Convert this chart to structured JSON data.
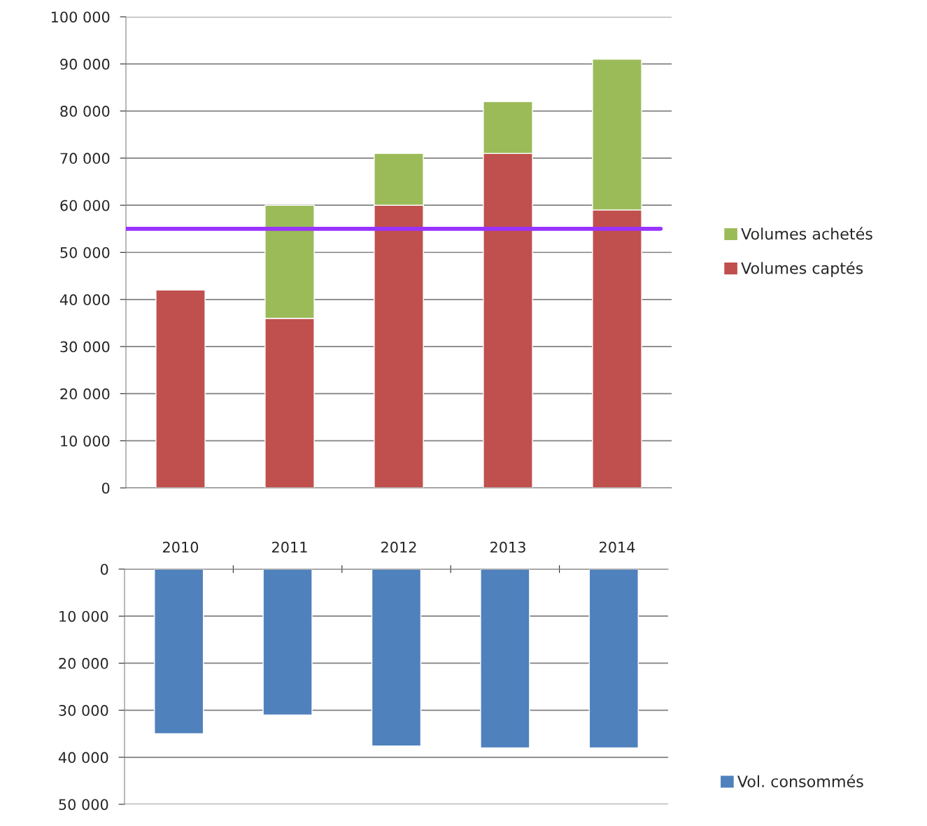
{
  "chart_data": [
    {
      "type": "bar",
      "stacked": true,
      "categories": [
        "2010",
        "2011",
        "2012",
        "2013",
        "2014"
      ],
      "series": [
        {
          "name": "Volumes captés",
          "color": "#c0504d",
          "values": [
            42000,
            36000,
            60000,
            71000,
            59000
          ]
        },
        {
          "name": "Volumes achetés",
          "color": "#9bbb59",
          "values": [
            null,
            24000,
            11000,
            11000,
            32000
          ]
        }
      ],
      "ylim": [
        0,
        100000
      ],
      "yticks": [
        0,
        {
          "value": 10000,
          "label": "10 000"
        },
        {
          "value": 20000,
          "label": "20 000"
        },
        {
          "value": 30000,
          "label": "30 000"
        },
        {
          "value": 40000,
          "label": "40 000"
        },
        {
          "value": 50000,
          "label": "50 000"
        },
        {
          "value": 60000,
          "label": "60 000"
        },
        {
          "value": 70000,
          "label": "70 000"
        },
        {
          "value": 80000,
          "label": "80 000"
        },
        {
          "value": 90000,
          "label": "90 000"
        },
        {
          "value": 100000,
          "label": "100 000"
        }
      ],
      "ref_lines": [
        {
          "axis": "y",
          "value": 55000,
          "color": "#9933ff"
        }
      ],
      "grid": "y",
      "legend": "right"
    },
    {
      "type": "bar",
      "categories": [
        "2010",
        "2011",
        "2012",
        "2013",
        "2014"
      ],
      "series": [
        {
          "name": "Vol. consommés",
          "color": "#4f81bd",
          "values": [
            35000,
            31000,
            37600,
            38000,
            38000
          ]
        }
      ],
      "ylim": [
        50000,
        0
      ],
      "yticks": [
        0,
        {
          "value": 10000,
          "label": "10 000"
        },
        {
          "value": 20000,
          "label": "20 000"
        },
        {
          "value": 30000,
          "label": "30 000"
        },
        {
          "value": 40000,
          "label": "40 000"
        },
        {
          "value": 50000,
          "label": "50 000"
        }
      ],
      "tick_labels": "y",
      "grid": "y",
      "legend": "bottom right"
    }
  ]
}
